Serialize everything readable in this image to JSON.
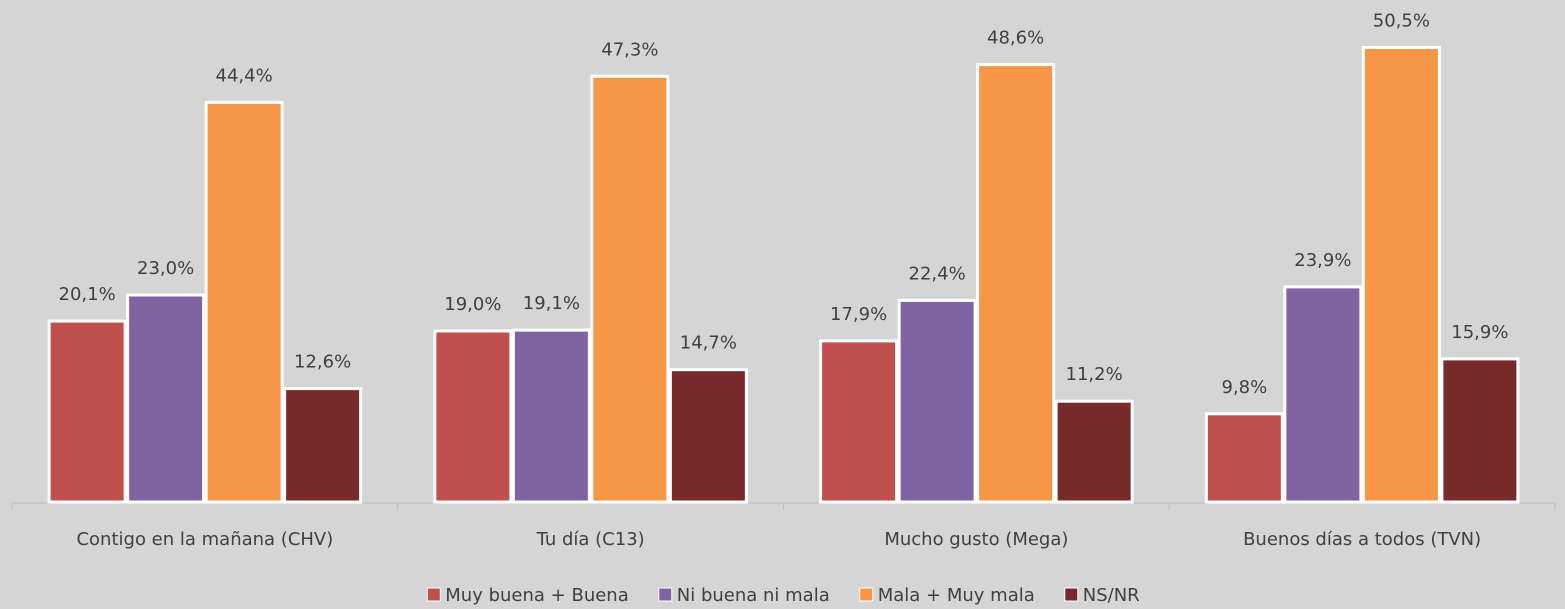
{
  "chart_data": {
    "type": "bar",
    "categories": [
      "Contigo en la mañana (CHV)",
      "Tu día (C13)",
      "Mucho gusto (Mega)",
      "Buenos días a todos (TVN)"
    ],
    "series": [
      {
        "name": "Muy buena + Buena",
        "color": "#c0504d",
        "values": [
          20.1,
          19.0,
          17.9,
          9.8
        ],
        "value_labels": [
          "20,1%",
          "19,0%",
          "17,9%",
          "9,8%"
        ]
      },
      {
        "name": "Ni buena ni mala",
        "color": "#8064a2",
        "values": [
          23.0,
          19.1,
          22.4,
          23.9
        ],
        "value_labels": [
          "23,0%",
          "19,1%",
          "22,4%",
          "23,9%"
        ]
      },
      {
        "name": "Mala + Muy mala",
        "color": "#f79646",
        "values": [
          44.4,
          47.3,
          48.6,
          50.5
        ],
        "value_labels": [
          "44,4%",
          "47,3%",
          "48,6%",
          "50,5%"
        ]
      },
      {
        "name": "NS/NR",
        "color": "#772a2a",
        "values": [
          12.6,
          14.7,
          11.2,
          15.9
        ],
        "value_labels": [
          "12,6%",
          "14,7%",
          "11,2%",
          "15,9%"
        ]
      }
    ],
    "ylim": [
      0,
      52
    ],
    "legend": "bottom"
  }
}
